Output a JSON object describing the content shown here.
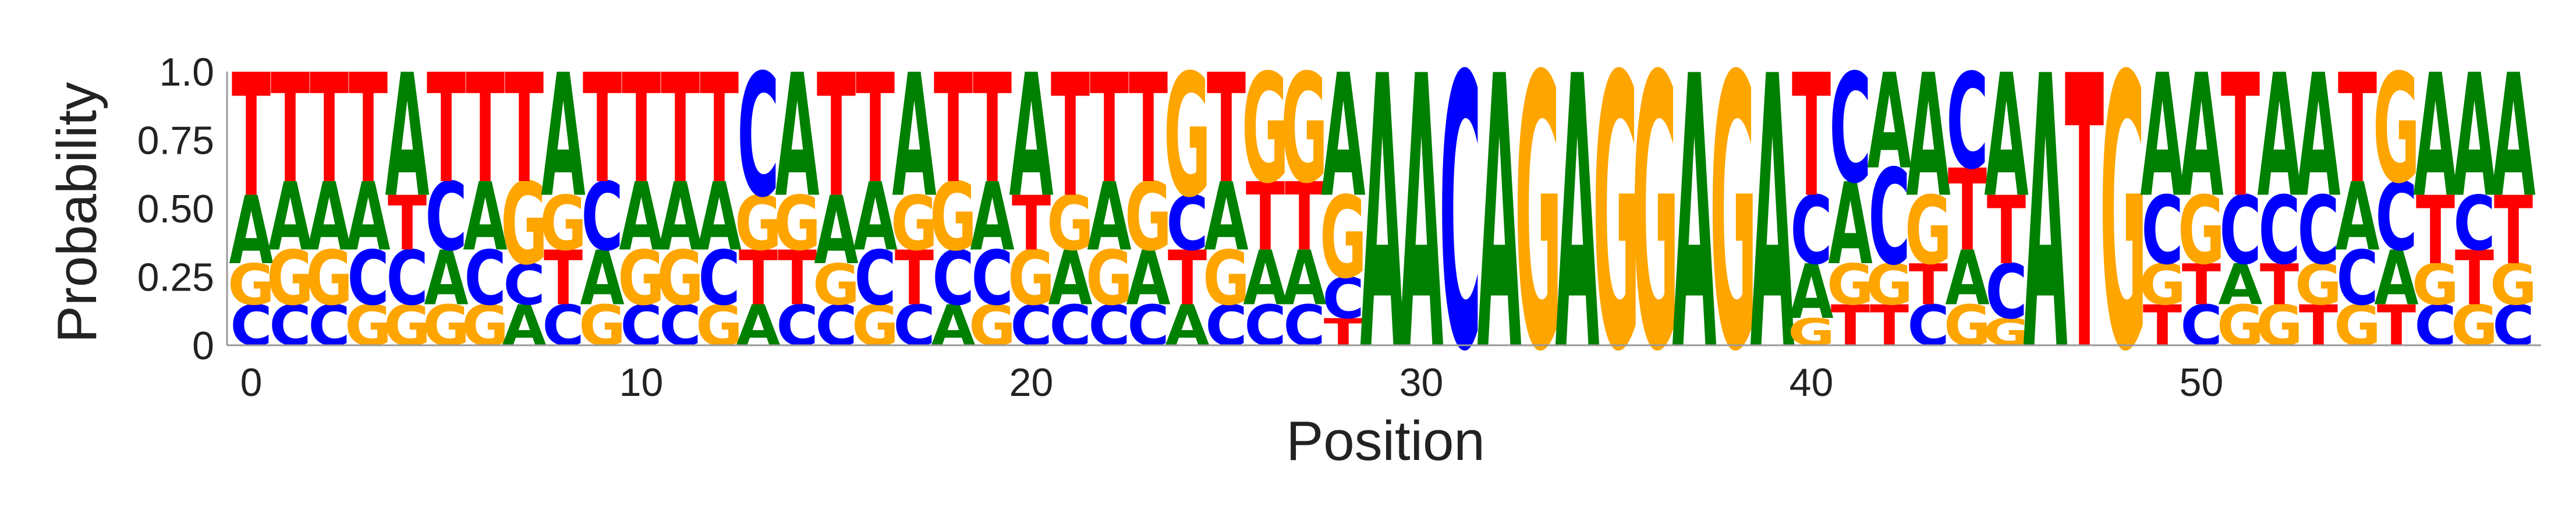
{
  "chart_data": {
    "type": "sequence_logo",
    "title": "",
    "xlabel": "Position",
    "ylabel": "Probability",
    "xticks": [
      0,
      10,
      20,
      30,
      40,
      50
    ],
    "yticks": [
      "0",
      "0.25",
      "0.50",
      "0.75",
      "1.0"
    ],
    "ylim": [
      0,
      1
    ],
    "colors": {
      "A": "#008000",
      "C": "#0000ff",
      "G": "#ffa500",
      "T": "#ff0000"
    },
    "positions": [
      {
        "T": 0.45,
        "A": 0.25,
        "C": 0.15,
        "G": 0.15
      },
      {
        "T": 0.4,
        "A": 0.25,
        "G": 0.2,
        "C": 0.15
      },
      {
        "T": 0.4,
        "A": 0.25,
        "G": 0.2,
        "C": 0.15
      },
      {
        "T": 0.4,
        "A": 0.25,
        "C": 0.2,
        "G": 0.15
      },
      {
        "A": 0.45,
        "C": 0.2,
        "T": 0.2,
        "G": 0.15
      },
      {
        "T": 0.4,
        "C": 0.25,
        "A": 0.2,
        "G": 0.15
      },
      {
        "T": 0.4,
        "A": 0.25,
        "C": 0.2,
        "G": 0.15
      },
      {
        "T": 0.4,
        "G": 0.3,
        "A": 0.15,
        "C": 0.15
      },
      {
        "A": 0.45,
        "T": 0.2,
        "G": 0.2,
        "C": 0.15
      },
      {
        "T": 0.4,
        "C": 0.25,
        "A": 0.2,
        "G": 0.15
      },
      {
        "T": 0.4,
        "A": 0.25,
        "G": 0.2,
        "C": 0.15
      },
      {
        "T": 0.4,
        "A": 0.25,
        "G": 0.2,
        "C": 0.15
      },
      {
        "T": 0.4,
        "A": 0.25,
        "C": 0.2,
        "G": 0.15
      },
      {
        "C": 0.45,
        "T": 0.2,
        "G": 0.2,
        "A": 0.15
      },
      {
        "A": 0.45,
        "T": 0.2,
        "G": 0.2,
        "C": 0.15
      },
      {
        "T": 0.45,
        "A": 0.25,
        "C": 0.15,
        "G": 0.15
      },
      {
        "T": 0.4,
        "A": 0.25,
        "C": 0.2,
        "G": 0.15
      },
      {
        "A": 0.45,
        "T": 0.2,
        "G": 0.2,
        "C": 0.15
      },
      {
        "T": 0.4,
        "G": 0.25,
        "C": 0.2,
        "A": 0.15
      },
      {
        "T": 0.4,
        "A": 0.25,
        "C": 0.2,
        "G": 0.15
      },
      {
        "A": 0.45,
        "G": 0.2,
        "T": 0.2,
        "C": 0.15
      },
      {
        "T": 0.45,
        "A": 0.2,
        "G": 0.2,
        "C": 0.15
      },
      {
        "T": 0.4,
        "A": 0.25,
        "G": 0.2,
        "C": 0.15
      },
      {
        "T": 0.4,
        "G": 0.25,
        "A": 0.2,
        "C": 0.15
      },
      {
        "G": 0.45,
        "T": 0.2,
        "C": 0.2,
        "A": 0.15
      },
      {
        "T": 0.4,
        "A": 0.25,
        "G": 0.2,
        "C": 0.15
      },
      {
        "G": 0.4,
        "T": 0.25,
        "A": 0.2,
        "C": 0.15
      },
      {
        "G": 0.4,
        "T": 0.25,
        "A": 0.2,
        "C": 0.15
      },
      {
        "A": 0.45,
        "G": 0.3,
        "T": 0.1,
        "C": 0.15
      },
      {
        "A": 1.0
      },
      {
        "A": 1.0
      },
      {
        "C": 1.0
      },
      {
        "A": 1.0
      },
      {
        "G": 1.0
      },
      {
        "A": 1.0
      },
      {
        "G": 1.0
      },
      {
        "G": 1.0
      },
      {
        "A": 1.0
      },
      {
        "G": 1.0
      },
      {
        "A": 1.0
      },
      {
        "T": 0.45,
        "C": 0.25,
        "A": 0.2,
        "G": 0.1
      },
      {
        "C": 0.4,
        "A": 0.3,
        "T": 0.15,
        "G": 0.15
      },
      {
        "C": 0.35,
        "A": 0.35,
        "T": 0.15,
        "G": 0.15
      },
      {
        "A": 0.45,
        "G": 0.25,
        "C": 0.15,
        "T": 0.15
      },
      {
        "C": 0.35,
        "T": 0.3,
        "A": 0.2,
        "G": 0.15
      },
      {
        "A": 0.45,
        "T": 0.25,
        "C": 0.2,
        "G": 0.1
      },
      {
        "A": 1.0
      },
      {
        "T": 1.0
      },
      {
        "G": 1.0
      },
      {
        "A": 0.45,
        "C": 0.25,
        "T": 0.15,
        "G": 0.15
      },
      {
        "A": 0.45,
        "G": 0.25,
        "C": 0.15,
        "T": 0.15
      },
      {
        "T": 0.45,
        "C": 0.25,
        "G": 0.15,
        "A": 0.15
      },
      {
        "A": 0.45,
        "C": 0.25,
        "G": 0.15,
        "T": 0.15
      },
      {
        "A": 0.45,
        "C": 0.25,
        "T": 0.15,
        "G": 0.15
      },
      {
        "T": 0.4,
        "A": 0.25,
        "C": 0.2,
        "G": 0.15
      },
      {
        "G": 0.4,
        "C": 0.25,
        "A": 0.2,
        "T": 0.15
      },
      {
        "A": 0.45,
        "T": 0.25,
        "C": 0.15,
        "G": 0.15
      },
      {
        "A": 0.45,
        "T": 0.2,
        "C": 0.2,
        "G": 0.15
      },
      {
        "A": 0.45,
        "T": 0.25,
        "C": 0.15,
        "G": 0.15
      }
    ]
  }
}
